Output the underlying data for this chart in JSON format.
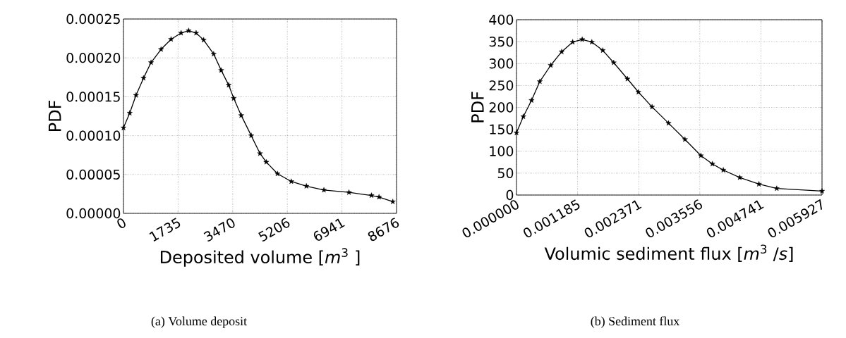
{
  "chart_data": [
    {
      "type": "line",
      "xlabel": "Deposited volume [*m*$^{3}$ ]",
      "ylabel": "PDF",
      "annotations": [
        "(a) Volume deposit"
      ],
      "marker": "star",
      "line_style": "solid",
      "grid": true,
      "xlim": [
        0,
        8676
      ],
      "xticks": [
        0,
        1735,
        3470,
        5206,
        6941,
        8676
      ],
      "ylim": [
        0,
        0.00025
      ],
      "yticks": [
        {
          "value": 0,
          "label": "0.00000"
        },
        {
          "value": 5e-05,
          "label": "0.00005"
        },
        {
          "value": 0.0001,
          "label": "0.00010"
        },
        {
          "value": 0.00015,
          "label": "0.00015"
        },
        {
          "value": 0.0002,
          "label": "0.00020"
        },
        {
          "value": 0.00025,
          "label": "0.00025"
        }
      ],
      "series": [
        {
          "color": "#000000",
          "x": [
            0,
            199,
            398,
            637,
            876,
            1194,
            1512,
            1831,
            2070,
            2308,
            2547,
            2866,
            3105,
            3343,
            3502,
            3741,
            4059,
            4338,
            4537,
            4895,
            5333,
            5811,
            6368,
            7164,
            7880,
            8119,
            8557
          ],
          "values": [
            0.00011,
            0.000129,
            0.000152,
            0.000174,
            0.000194,
            0.000211,
            0.000224,
            0.000232,
            0.000235,
            0.000232,
            0.000223,
            0.000205,
            0.000184,
            0.000165,
            0.000148,
            0.000126,
            0.0001,
            7.7e-05,
            6.6e-05,
            5.1e-05,
            4.1e-05,
            3.5e-05,
            3e-05,
            2.7e-05,
            2.3e-05,
            2.1e-05,
            1.5e-05
          ]
        }
      ]
    },
    {
      "type": "line",
      "xlabel": "Volumic sediment flux [*m*$^{3}$ /*s*]",
      "ylabel": "PDF",
      "annotations": [
        "(b) Sediment flux"
      ],
      "marker": "star",
      "line_style": "solid",
      "grid": true,
      "xlim": [
        0,
        0.005927
      ],
      "xticks": [
        {
          "value": 0,
          "label": "0.000000"
        },
        0.001185,
        0.002371,
        0.003556,
        0.004741,
        0.005927
      ],
      "ylim": [
        0,
        400
      ],
      "yticks": [
        0,
        50,
        100,
        150,
        200,
        250,
        300,
        350,
        400
      ],
      "series": [
        {
          "color": "#000000",
          "x": [
            0,
            0.000133,
            0.000292,
            0.000452,
            0.000664,
            0.000877,
            0.00109,
            0.001275,
            0.001461,
            0.001674,
            0.001886,
            0.002152,
            0.002365,
            0.00263,
            0.002949,
            0.003268,
            0.003577,
            0.0038,
            0.004012,
            0.004331,
            0.004703,
            0.005048,
            0.005927
          ],
          "values": [
            142,
            179,
            216,
            259,
            296,
            327,
            349,
            355,
            349,
            330,
            302,
            265,
            235,
            201,
            164,
            127,
            90,
            71,
            57,
            40,
            25,
            15,
            9
          ]
        }
      ]
    }
  ]
}
